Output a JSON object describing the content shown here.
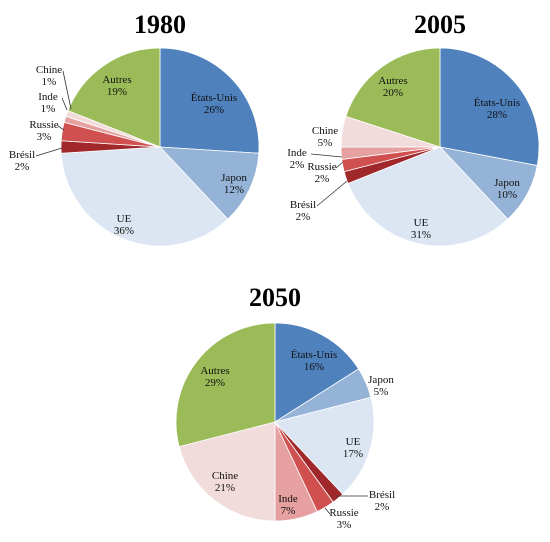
{
  "chart_data": [
    {
      "type": "pie",
      "title": "1980",
      "slices": [
        {
          "label": "États-Unis",
          "value": 26,
          "value_text": "26%",
          "color": "#4f81bd"
        },
        {
          "label": "Japon",
          "value": 12,
          "value_text": "12%",
          "color": "#95b3d7"
        },
        {
          "label": "UE",
          "value": 36,
          "value_text": "36%",
          "color": "#dce6f2"
        },
        {
          "label": "Brésil",
          "value": 2,
          "value_text": "2%",
          "color": "#a0282b"
        },
        {
          "label": "Russie",
          "value": 3,
          "value_text": "3%",
          "color": "#d05050"
        },
        {
          "label": "Inde",
          "value": 1,
          "value_text": "1%",
          "color": "#e6a0a0"
        },
        {
          "label": "Chine",
          "value": 1,
          "value_text": "1%",
          "color": "#f2dcdb"
        },
        {
          "label": "Autres",
          "value": 19,
          "value_text": "19%",
          "color": "#9bbb59"
        }
      ]
    },
    {
      "type": "pie",
      "title": "2005",
      "slices": [
        {
          "label": "États-Unis",
          "value": 28,
          "value_text": "28%",
          "color": "#4f81bd"
        },
        {
          "label": "Japon",
          "value": 10,
          "value_text": "10%",
          "color": "#95b3d7"
        },
        {
          "label": "UE",
          "value": 31,
          "value_text": "31%",
          "color": "#dce6f2"
        },
        {
          "label": "Brésil",
          "value": 2,
          "value_text": "2%",
          "color": "#a0282b"
        },
        {
          "label": "Russie",
          "value": 2,
          "value_text": "2%",
          "color": "#d05050"
        },
        {
          "label": "Inde",
          "value": 2,
          "value_text": "2%",
          "color": "#e6a0a0"
        },
        {
          "label": "Chine",
          "value": 5,
          "value_text": "5%",
          "color": "#f2dcdb"
        },
        {
          "label": "Autres",
          "value": 20,
          "value_text": "20%",
          "color": "#9bbb59"
        }
      ]
    },
    {
      "type": "pie",
      "title": "2050",
      "slices": [
        {
          "label": "États-Unis",
          "value": 16,
          "value_text": "16%",
          "color": "#4f81bd"
        },
        {
          "label": "Japon",
          "value": 5,
          "value_text": "5%",
          "color": "#95b3d7"
        },
        {
          "label": "UE",
          "value": 17,
          "value_text": "17%",
          "color": "#dce6f2"
        },
        {
          "label": "Brésil",
          "value": 2,
          "value_text": "2%",
          "color": "#a0282b"
        },
        {
          "label": "Russie",
          "value": 3,
          "value_text": "3%",
          "color": "#d05050"
        },
        {
          "label": "Inde",
          "value": 7,
          "value_text": "7%",
          "color": "#e6a0a0"
        },
        {
          "label": "Chine",
          "value": 21,
          "value_text": "21%",
          "color": "#f2dcdb"
        },
        {
          "label": "Autres",
          "value": 29,
          "value_text": "29%",
          "color": "#9bbb59"
        }
      ]
    }
  ]
}
